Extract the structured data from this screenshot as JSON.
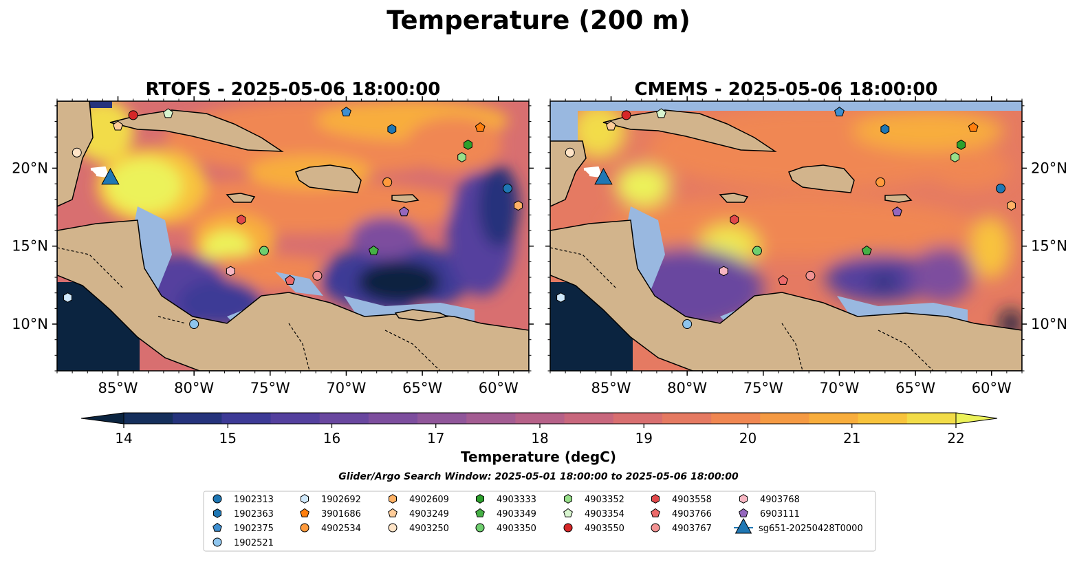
{
  "figure": {
    "title": "Temperature (200 m)",
    "colorbar_label": "Temperature (degC)",
    "search_window": "Glider/Argo Search Window: 2025-05-01 18:00:00 to 2025-05-06 18:00:00"
  },
  "chart_data": [
    {
      "type": "heatmap",
      "title": "RTOFS - 2025-05-06 18:00:00",
      "x_ticks": [
        "85°W",
        "80°W",
        "75°W",
        "70°W",
        "65°W",
        "60°W"
      ],
      "y_ticks": [
        "20°N",
        "15°N",
        "10°N"
      ],
      "xlim": [
        -89,
        -58
      ],
      "ylim": [
        7,
        24.3
      ]
    },
    {
      "type": "heatmap",
      "title": "CMEMS - 2025-05-06 18:00:00",
      "x_ticks": [
        "85°W",
        "80°W",
        "75°W",
        "70°W",
        "65°W",
        "60°W"
      ],
      "y_ticks": [
        "20°N",
        "15°N",
        "10°N"
      ],
      "xlim": [
        -89,
        -58
      ],
      "ylim": [
        7,
        24.3
      ]
    }
  ],
  "colorbar": {
    "min": 14,
    "max": 22,
    "step": 0.5,
    "ticks": [
      "14",
      "15",
      "16",
      "17",
      "18",
      "19",
      "20",
      "21",
      "22"
    ],
    "colors": [
      "#0b2440",
      "#152f5c",
      "#25337c",
      "#3d3a96",
      "#54409e",
      "#69479f",
      "#7d4e9e",
      "#90569a",
      "#a35c92",
      "#b66188",
      "#c8677d",
      "#d86f70",
      "#e57a62",
      "#f08752",
      "#f59a43",
      "#f8ad3c",
      "#f8c33c",
      "#f2dc48",
      "#ecf25a"
    ]
  },
  "legend": {
    "items": [
      {
        "label": "1902313",
        "marker": "circle",
        "color": "#1f77b4"
      },
      {
        "label": "1902363",
        "marker": "hexagon",
        "color": "#1f77b4"
      },
      {
        "label": "1902375",
        "marker": "pentagon",
        "color": "#3f8fd0"
      },
      {
        "label": "1902521",
        "marker": "circle",
        "color": "#8ec5ee"
      },
      {
        "label": "1902692",
        "marker": "hexagon",
        "color": "#cfe8fb"
      },
      {
        "label": "3901686",
        "marker": "pentagon",
        "color": "#ff7f0e"
      },
      {
        "label": "4902534",
        "marker": "circle",
        "color": "#ff9a3c"
      },
      {
        "label": "4902609",
        "marker": "hexagon",
        "color": "#ffb266"
      },
      {
        "label": "4903249",
        "marker": "pentagon",
        "color": "#ffcc99"
      },
      {
        "label": "4903250",
        "marker": "circle",
        "color": "#ffe4c7"
      },
      {
        "label": "4903333",
        "marker": "hexagon",
        "color": "#2ca02c"
      },
      {
        "label": "4903349",
        "marker": "pentagon",
        "color": "#45b045"
      },
      {
        "label": "4903350",
        "marker": "circle",
        "color": "#6fcf6f"
      },
      {
        "label": "4903352",
        "marker": "hexagon",
        "color": "#98df8a"
      },
      {
        "label": "4903354",
        "marker": "pentagon",
        "color": "#d8f5cf"
      },
      {
        "label": "4903550",
        "marker": "circle",
        "color": "#d62728"
      },
      {
        "label": "4903558",
        "marker": "hexagon",
        "color": "#e0484a"
      },
      {
        "label": "4903766",
        "marker": "pentagon",
        "color": "#ec6a6a"
      },
      {
        "label": "4903767",
        "marker": "circle",
        "color": "#f29393"
      },
      {
        "label": "4903768",
        "marker": "hexagon",
        "color": "#f7b6c2"
      },
      {
        "label": "6903111",
        "marker": "pentagon",
        "color": "#9467bd"
      },
      {
        "label": "sg651-20250428T0000",
        "marker": "triangle",
        "color": "#1f77b4"
      }
    ]
  },
  "points": [
    {
      "id": "1902313",
      "lon": -59.4,
      "lat": 18.7
    },
    {
      "id": "1902363",
      "lon": -67.0,
      "lat": 22.5
    },
    {
      "id": "1902375",
      "lon": -70.0,
      "lat": 23.6
    },
    {
      "id": "1902521",
      "lon": -80.0,
      "lat": 10.0
    },
    {
      "id": "1902692",
      "lon": -88.3,
      "lat": 11.7
    },
    {
      "id": "3901686",
      "lon": -61.2,
      "lat": 22.6
    },
    {
      "id": "4902534",
      "lon": -67.3,
      "lat": 19.1
    },
    {
      "id": "4902609",
      "lon": -58.7,
      "lat": 17.6
    },
    {
      "id": "4903249",
      "lon": -85.0,
      "lat": 22.7
    },
    {
      "id": "4903250",
      "lon": -87.7,
      "lat": 21.0
    },
    {
      "id": "4903333",
      "lon": -62.0,
      "lat": 21.5
    },
    {
      "id": "4903349",
      "lon": -68.2,
      "lat": 14.7
    },
    {
      "id": "4903350",
      "lon": -75.4,
      "lat": 14.7
    },
    {
      "id": "4903352",
      "lon": -62.4,
      "lat": 20.7
    },
    {
      "id": "4903354",
      "lon": -81.7,
      "lat": 23.5
    },
    {
      "id": "4903550",
      "lon": -84.0,
      "lat": 23.4
    },
    {
      "id": "4903558",
      "lon": -76.9,
      "lat": 16.7
    },
    {
      "id": "4903766",
      "lon": -73.7,
      "lat": 12.8
    },
    {
      "id": "4903767",
      "lon": -71.9,
      "lat": 13.1
    },
    {
      "id": "4903768",
      "lon": -77.6,
      "lat": 13.4
    },
    {
      "id": "6903111",
      "lon": -66.2,
      "lat": 17.2
    },
    {
      "id": "sg651-20250428T0000",
      "lon": -85.5,
      "lat": 19.4
    }
  ]
}
